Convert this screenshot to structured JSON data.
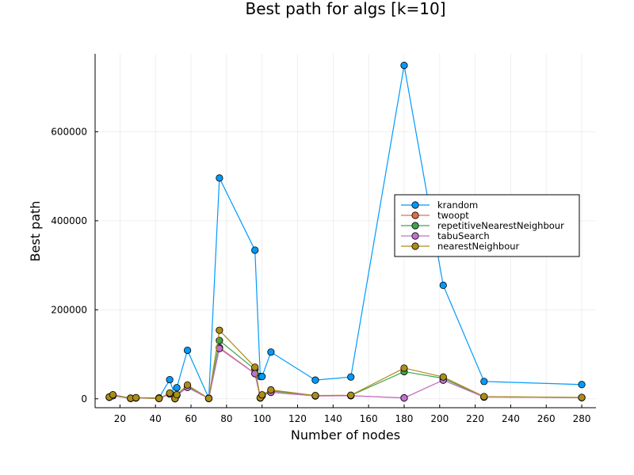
{
  "chart_data": {
    "type": "line",
    "title": "Best path for algs [k=10]",
    "xlabel": "Number of nodes",
    "ylabel": "Best path",
    "xlim": [
      6,
      288
    ],
    "ylim": [
      -20000,
      775000
    ],
    "xticks": [
      20,
      40,
      60,
      80,
      100,
      120,
      140,
      160,
      180,
      200,
      220,
      240,
      260,
      280
    ],
    "yticks": [
      0,
      200000,
      400000,
      600000
    ],
    "grid": true,
    "legend_position": "right-middle",
    "series": [
      {
        "name": "krandom",
        "color": "#009AFA",
        "x": [
          14,
          16,
          26,
          29,
          42,
          48,
          51,
          52,
          58,
          70,
          76,
          96,
          99,
          100,
          105,
          130,
          150,
          180,
          202,
          225,
          280
        ],
        "y": [
          4000,
          9000,
          1500,
          2500,
          2000,
          43000,
          5000,
          25000,
          109000,
          1500,
          496000,
          334000,
          50000,
          50000,
          105000,
          42000,
          49000,
          749000,
          255000,
          39000,
          32000
        ]
      },
      {
        "name": "twoopt",
        "color": "#E36F47",
        "x": [
          14,
          16,
          26,
          29,
          42,
          48,
          51,
          52,
          58,
          70,
          76,
          96,
          99,
          100,
          105,
          130,
          150,
          180,
          202,
          225,
          280
        ],
        "y": [
          3500,
          7000,
          900,
          2000,
          700,
          11000,
          400,
          8000,
          26000,
          700,
          115000,
          57000,
          2000,
          7000,
          15000,
          6500,
          7000,
          2000,
          42000,
          4000,
          2700
        ]
      },
      {
        "name": "repetitiveNearestNeighbour",
        "color": "#3EA44E",
        "x": [
          14,
          16,
          26,
          29,
          42,
          48,
          51,
          52,
          58,
          70,
          76,
          96,
          99,
          100,
          105,
          130,
          150,
          180,
          202,
          225,
          280
        ],
        "y": [
          3800,
          7500,
          1000,
          2200,
          800,
          12500,
          450,
          9000,
          28000,
          750,
          131000,
          66000,
          2200,
          7800,
          18000,
          7000,
          7500,
          61000,
          46000,
          4500,
          2900
        ]
      },
      {
        "name": "tabuSearch",
        "color": "#C271D2",
        "x": [
          14,
          16,
          26,
          29,
          42,
          48,
          51,
          52,
          58,
          70,
          76,
          96,
          99,
          100,
          105,
          130,
          150,
          180,
          202,
          225,
          280
        ],
        "y": [
          3400,
          6900,
          850,
          1950,
          650,
          10800,
          380,
          7800,
          25500,
          650,
          113000,
          56500,
          1900,
          6900,
          14500,
          6400,
          6900,
          2000,
          42000,
          3900,
          2600
        ]
      },
      {
        "name": "nearestNeighbour",
        "color": "#AC8D18",
        "x": [
          14,
          16,
          26,
          29,
          42,
          48,
          51,
          52,
          58,
          70,
          76,
          96,
          99,
          100,
          105,
          130,
          150,
          180,
          202,
          225,
          280
        ],
        "y": [
          4000,
          9000,
          1200,
          2500,
          900,
          13000,
          500,
          9500,
          31000,
          900,
          154000,
          71000,
          2500,
          9000,
          20000,
          7300,
          8000,
          69000,
          49000,
          5000,
          3000
        ]
      }
    ]
  }
}
